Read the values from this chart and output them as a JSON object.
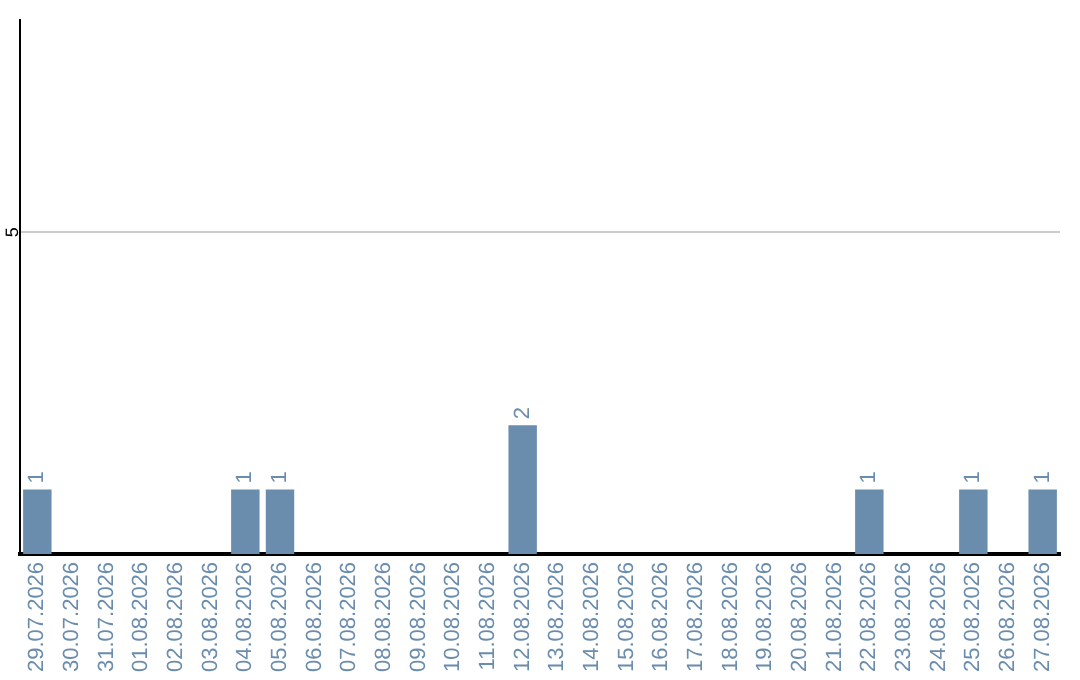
{
  "chart_data": {
    "type": "bar",
    "categories": [
      "29.07.2026",
      "30.07.2026",
      "31.07.2026",
      "01.08.2026",
      "02.08.2026",
      "03.08.2026",
      "04.08.2026",
      "05.08.2026",
      "06.08.2026",
      "07.08.2026",
      "08.08.2026",
      "09.08.2026",
      "10.08.2026",
      "11.08.2026",
      "12.08.2026",
      "13.08.2026",
      "14.08.2026",
      "15.08.2026",
      "16.08.2026",
      "17.08.2026",
      "18.08.2026",
      "19.08.2026",
      "20.08.2026",
      "21.08.2026",
      "22.08.2026",
      "23.08.2026",
      "24.08.2026",
      "25.08.2026",
      "26.08.2026",
      "27.08.2026"
    ],
    "values": [
      1,
      0,
      0,
      0,
      0,
      0,
      1,
      1,
      0,
      0,
      0,
      0,
      0,
      0,
      2,
      0,
      0,
      0,
      0,
      0,
      0,
      0,
      0,
      0,
      1,
      0,
      0,
      1,
      0,
      1
    ],
    "value_labels": [
      "1",
      null,
      null,
      null,
      null,
      null,
      "1",
      "1",
      null,
      null,
      null,
      null,
      null,
      null,
      "2",
      null,
      null,
      null,
      null,
      null,
      null,
      null,
      null,
      null,
      "1",
      null,
      null,
      "1",
      null,
      "1"
    ],
    "color": "#6a8cad",
    "ylim": [
      0,
      8.3
    ],
    "yticks": [
      5
    ],
    "grid": "y",
    "legend": false
  }
}
